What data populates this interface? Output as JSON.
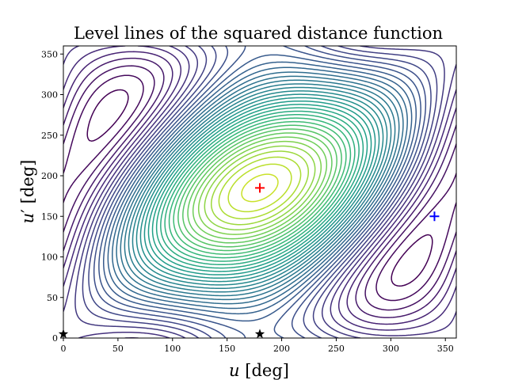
{
  "chart_data": {
    "type": "contour",
    "title": "Level lines of the squared distance function",
    "xlabel": {
      "var": "u",
      "unit": "[deg]"
    },
    "ylabel": {
      "var": "u",
      "prime": "′",
      "unit": "[deg]"
    },
    "xlim": [
      0,
      360
    ],
    "ylim": [
      0,
      360
    ],
    "xticks": [
      "0",
      "50",
      "100",
      "150",
      "200",
      "250",
      "300",
      "350"
    ],
    "yticks": [
      "0",
      "50",
      "100",
      "150",
      "200",
      "250",
      "300",
      "350"
    ],
    "xtick_values": [
      0,
      50,
      100,
      150,
      200,
      250,
      300,
      350
    ],
    "ytick_values": [
      0,
      50,
      100,
      150,
      200,
      250,
      300,
      350
    ],
    "grid": false,
    "legend": false,
    "colormap": "viridis",
    "levels": 40,
    "markers": [
      {
        "name": "max-marker",
        "symbol": "plus",
        "x": 180,
        "y": 185,
        "color": "#ff0000"
      },
      {
        "name": "saddle-marker",
        "symbol": "plus",
        "x": 340,
        "y": 150,
        "color": "#0000ff"
      },
      {
        "name": "min-marker-a",
        "symbol": "star",
        "x": 180,
        "y": 5,
        "color": "#000000"
      },
      {
        "name": "min-marker-b",
        "symbol": "star",
        "x": 0,
        "y": 5,
        "color": "#000000"
      }
    ]
  }
}
